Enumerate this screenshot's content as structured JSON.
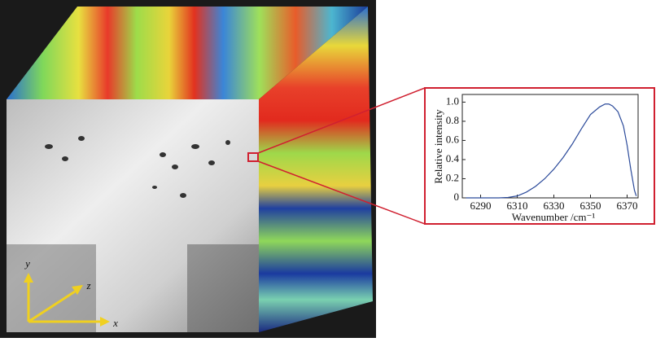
{
  "chart_data": {
    "type": "line",
    "x_label": "Wavenumber /cm⁻¹",
    "y_label": "Relative intensity",
    "series": [
      {
        "color": "#2b4a9a",
        "x": [
          6282,
          6290,
          6300,
          6305,
          6310,
          6315,
          6320,
          6325,
          6330,
          6335,
          6340,
          6345,
          6350,
          6355,
          6358,
          6360,
          6362,
          6365,
          6368,
          6370,
          6372,
          6374,
          6375
        ],
        "values": [
          0,
          0,
          0,
          0.005,
          0.02,
          0.06,
          0.12,
          0.2,
          0.3,
          0.42,
          0.56,
          0.72,
          0.87,
          0.95,
          0.98,
          0.98,
          0.96,
          0.9,
          0.75,
          0.55,
          0.3,
          0.08,
          0.02
        ]
      }
    ],
    "xlim": [
      6280,
      6376
    ],
    "xticks": [
      6290,
      6310,
      6330,
      6350,
      6370
    ],
    "ylim": [
      0,
      1.08
    ],
    "yticks": [
      0,
      0.2,
      0.4,
      0.6,
      0.8,
      {
        "value": 1,
        "label": "1.0"
      }
    ]
  },
  "cube_axes": [
    "y",
    "z",
    "x"
  ]
}
